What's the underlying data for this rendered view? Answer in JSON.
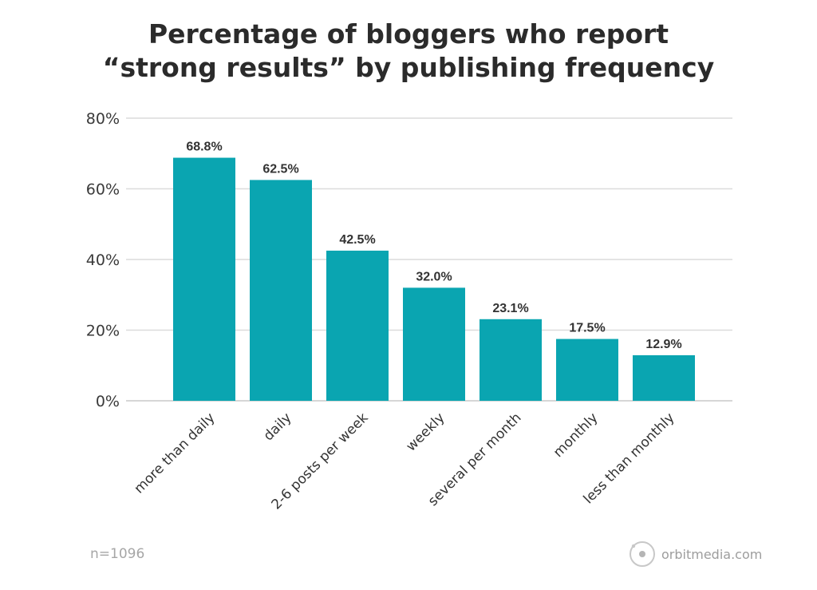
{
  "chart_data": {
    "type": "bar",
    "title_line1": "Percentage of bloggers who report",
    "title_line2": "“strong results” by publishing frequency",
    "categories": [
      "more than daily",
      "daily",
      "2-6 posts per week",
      "weekly",
      "several per month",
      "monthly",
      "less than monthly"
    ],
    "values": [
      68.8,
      62.5,
      42.5,
      32.0,
      23.1,
      17.5,
      12.9
    ],
    "value_labels": [
      "68.8%",
      "62.5%",
      "42.5%",
      "32.0%",
      "23.1%",
      "17.5%",
      "12.9%"
    ],
    "y_ticks": [
      "0%",
      "20%",
      "40%",
      "60%",
      "80%"
    ],
    "y_tick_values": [
      0,
      20,
      40,
      60,
      80
    ],
    "ylim": [
      0,
      80
    ],
    "grid": true,
    "bar_color": "#0aa5b1"
  },
  "footer": {
    "sample_size": "n=1096",
    "brand": "orbitmedia.com"
  }
}
